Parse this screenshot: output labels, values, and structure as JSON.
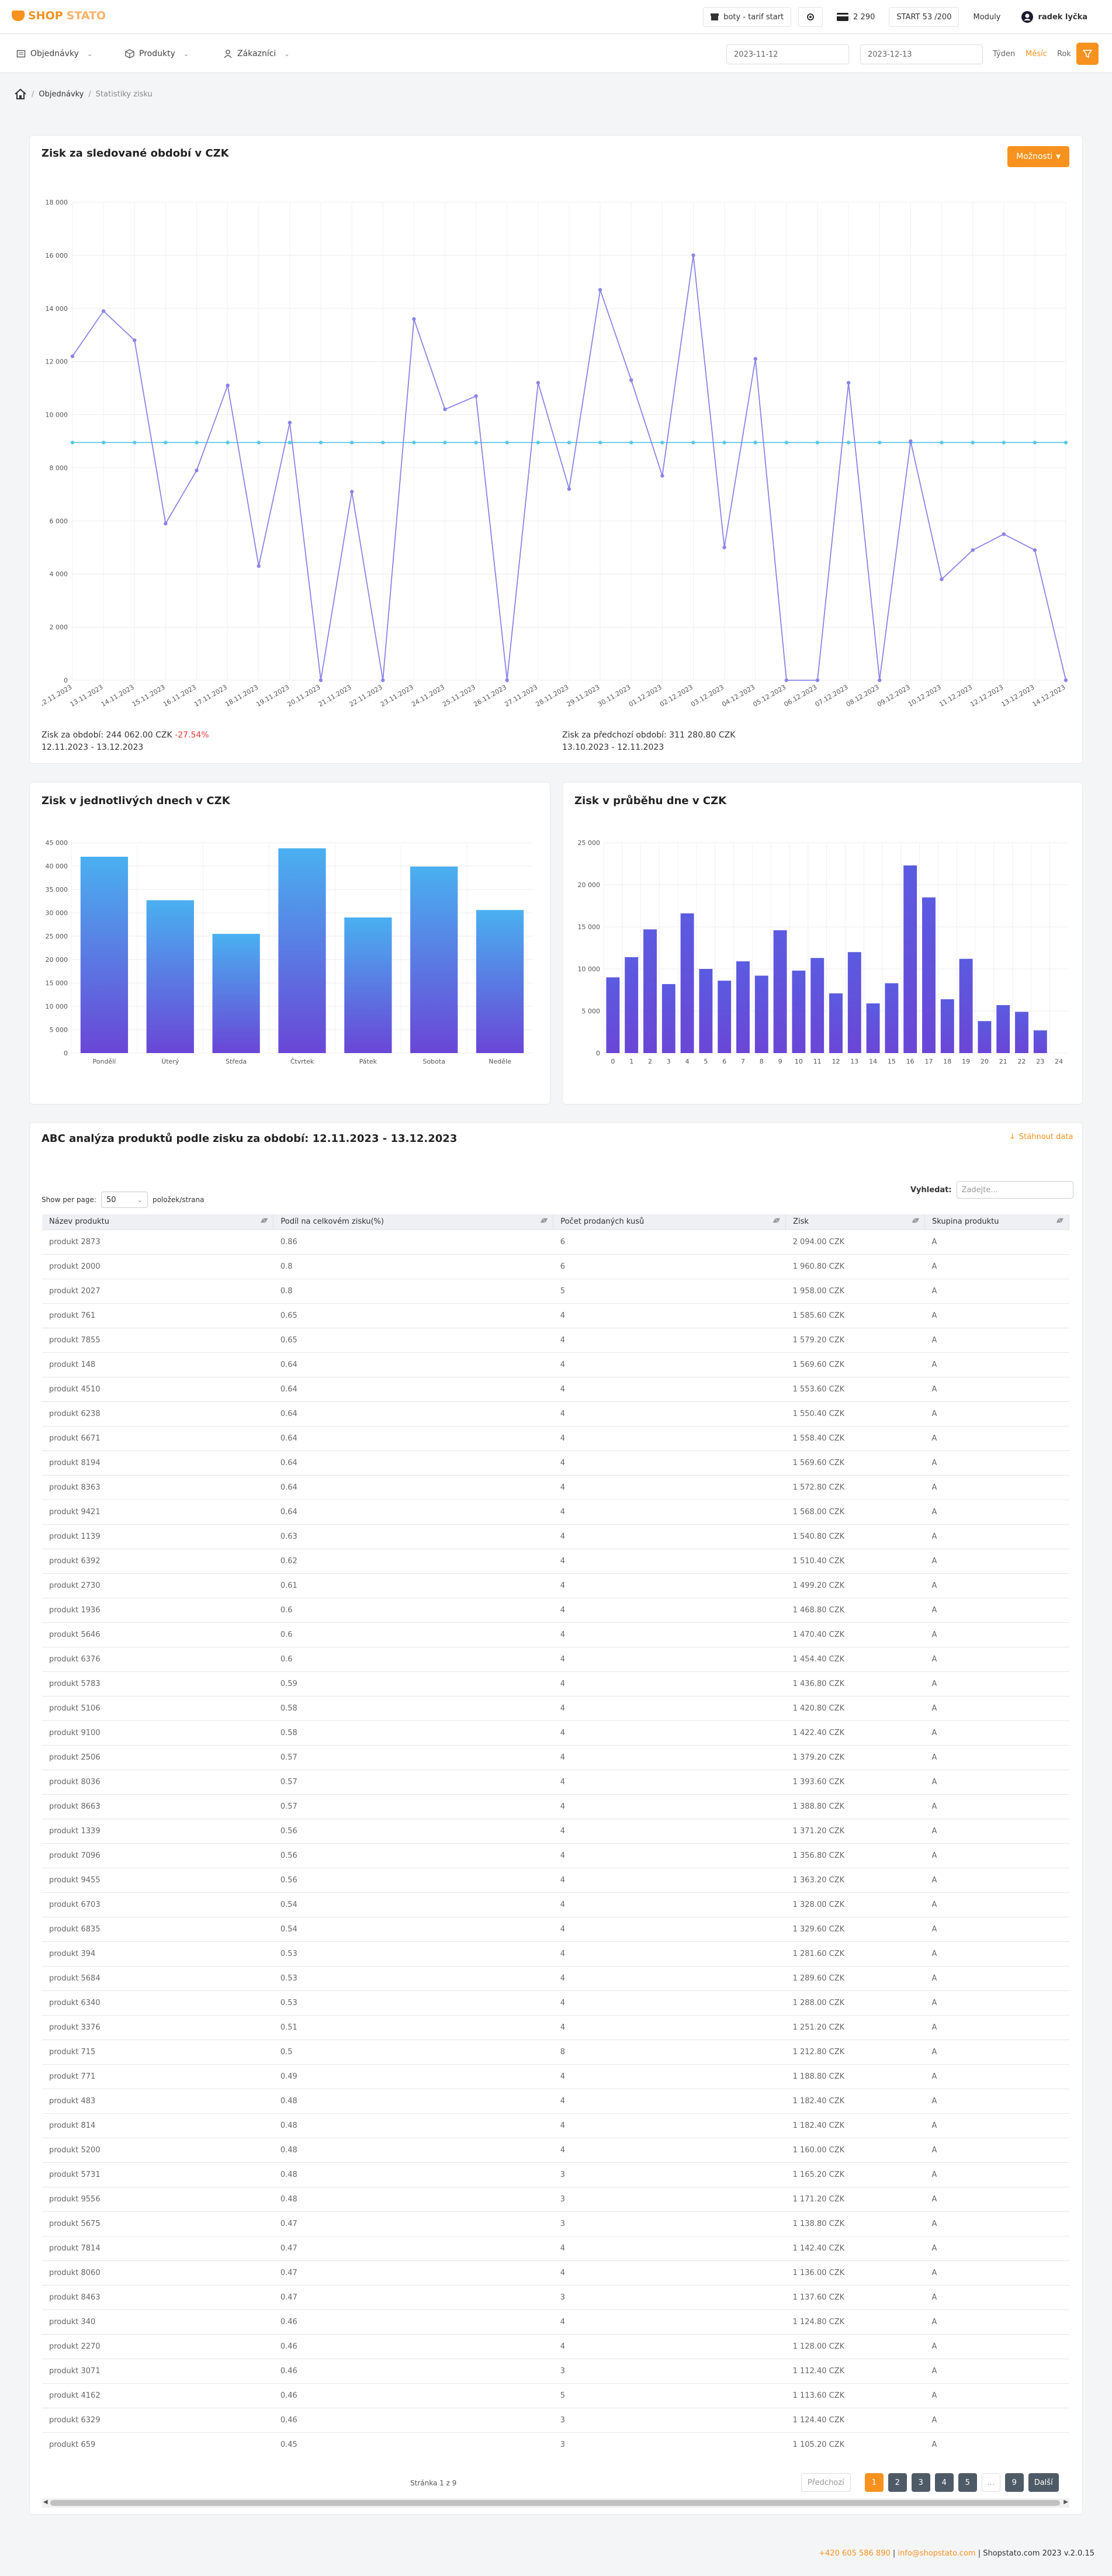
{
  "brand": {
    "name_part1": "SHOP",
    "name_part2": "STATO",
    "accent": "#f7921e"
  },
  "topbar": {
    "plan_label": "boty - tarif start",
    "credits": "2 290",
    "start_label": "START 53 /200",
    "modules_label": "Moduly",
    "user_name": "radek lyčka"
  },
  "nav": {
    "items": [
      {
        "label": "Objednávky",
        "icon": "orders-icon"
      },
      {
        "label": "Produkty",
        "icon": "box-icon"
      },
      {
        "label": "Zákazníci",
        "icon": "user-icon"
      }
    ],
    "date_from": "2023-11-12",
    "date_to": "2023-12-13",
    "periods": [
      "Týden",
      "Měsíc",
      "Rok"
    ],
    "active_period": "Měsíc"
  },
  "breadcrumb": {
    "items": [
      "Objednávky",
      "Statistiky zisku"
    ]
  },
  "profit_card": {
    "title": "Zisk za sledované období v CZK",
    "options_label": "Možnosti",
    "current_period_label": "Zisk za období: 244 062.00 CZK",
    "current_period_change": "-27.54%",
    "current_period_range": "12.11.2023 - 13.12.2023",
    "previous_period_label": "Zisk za předchozí období: 311 280.80 CZK",
    "previous_period_range": "13.10.2023 - 12.11.2023"
  },
  "weekday_card": {
    "title": "Zisk v jednotlivých dnech v CZK"
  },
  "hourly_card": {
    "title": "Zisk v průběhu dne v CZK"
  },
  "abc_card": {
    "title": "ABC analýza produktů podle zisku za období: 12.11.2023 - 13.12.2023",
    "download_label": "Stáhnout data",
    "show_per_page_label": "Show per page:",
    "per_page_value": "50",
    "per_page_suffix": "položek/strana",
    "search_label": "Vyhledat:",
    "search_placeholder": "Zadejte...",
    "columns": [
      "Název produktu",
      "Podíl na celkovém zisku(%)",
      "Počet prodaných kusů",
      "Zisk",
      "Skupina produktu"
    ],
    "rows": [
      [
        "produkt 2873",
        "0.86",
        "6",
        "2 094.00 CZK",
        "A"
      ],
      [
        "produkt 2000",
        "0.8",
        "6",
        "1 960.80 CZK",
        "A"
      ],
      [
        "produkt 2027",
        "0.8",
        "5",
        "1 958.00 CZK",
        "A"
      ],
      [
        "produkt 761",
        "0.65",
        "4",
        "1 585.60 CZK",
        "A"
      ],
      [
        "produkt 7855",
        "0.65",
        "4",
        "1 579.20 CZK",
        "A"
      ],
      [
        "produkt 148",
        "0.64",
        "4",
        "1 569.60 CZK",
        "A"
      ],
      [
        "produkt 4510",
        "0.64",
        "4",
        "1 553.60 CZK",
        "A"
      ],
      [
        "produkt 6238",
        "0.64",
        "4",
        "1 550.40 CZK",
        "A"
      ],
      [
        "produkt 6671",
        "0.64",
        "4",
        "1 558.40 CZK",
        "A"
      ],
      [
        "produkt 8194",
        "0.64",
        "4",
        "1 569.60 CZK",
        "A"
      ],
      [
        "produkt 8363",
        "0.64",
        "4",
        "1 572.80 CZK",
        "A"
      ],
      [
        "produkt 9421",
        "0.64",
        "4",
        "1 568.00 CZK",
        "A"
      ],
      [
        "produkt 1139",
        "0.63",
        "4",
        "1 540.80 CZK",
        "A"
      ],
      [
        "produkt 6392",
        "0.62",
        "4",
        "1 510.40 CZK",
        "A"
      ],
      [
        "produkt 2730",
        "0.61",
        "4",
        "1 499.20 CZK",
        "A"
      ],
      [
        "produkt 1936",
        "0.6",
        "4",
        "1 468.80 CZK",
        "A"
      ],
      [
        "produkt 5646",
        "0.6",
        "4",
        "1 470.40 CZK",
        "A"
      ],
      [
        "produkt 6376",
        "0.6",
        "4",
        "1 454.40 CZK",
        "A"
      ],
      [
        "produkt 5783",
        "0.59",
        "4",
        "1 436.80 CZK",
        "A"
      ],
      [
        "produkt 5106",
        "0.58",
        "4",
        "1 420.80 CZK",
        "A"
      ],
      [
        "produkt 9100",
        "0.58",
        "4",
        "1 422.40 CZK",
        "A"
      ],
      [
        "produkt 2506",
        "0.57",
        "4",
        "1 379.20 CZK",
        "A"
      ],
      [
        "produkt 8036",
        "0.57",
        "4",
        "1 393.60 CZK",
        "A"
      ],
      [
        "produkt 8663",
        "0.57",
        "4",
        "1 388.80 CZK",
        "A"
      ],
      [
        "produkt 1339",
        "0.56",
        "4",
        "1 371.20 CZK",
        "A"
      ],
      [
        "produkt 7096",
        "0.56",
        "4",
        "1 356.80 CZK",
        "A"
      ],
      [
        "produkt 9455",
        "0.56",
        "4",
        "1 363.20 CZK",
        "A"
      ],
      [
        "produkt 6703",
        "0.54",
        "4",
        "1 328.00 CZK",
        "A"
      ],
      [
        "produkt 6835",
        "0.54",
        "4",
        "1 329.60 CZK",
        "A"
      ],
      [
        "produkt 394",
        "0.53",
        "4",
        "1 281.60 CZK",
        "A"
      ],
      [
        "produkt 5684",
        "0.53",
        "4",
        "1 289.60 CZK",
        "A"
      ],
      [
        "produkt 6340",
        "0.53",
        "4",
        "1 288.00 CZK",
        "A"
      ],
      [
        "produkt 3376",
        "0.51",
        "4",
        "1 251.20 CZK",
        "A"
      ],
      [
        "produkt 715",
        "0.5",
        "8",
        "1 212.80 CZK",
        "A"
      ],
      [
        "produkt 771",
        "0.49",
        "4",
        "1 188.80 CZK",
        "A"
      ],
      [
        "produkt 483",
        "0.48",
        "4",
        "1 182.40 CZK",
        "A"
      ],
      [
        "produkt 814",
        "0.48",
        "4",
        "1 182.40 CZK",
        "A"
      ],
      [
        "produkt 5200",
        "0.48",
        "4",
        "1 160.00 CZK",
        "A"
      ],
      [
        "produkt 5731",
        "0.48",
        "3",
        "1 165.20 CZK",
        "A"
      ],
      [
        "produkt 9556",
        "0.48",
        "3",
        "1 171.20 CZK",
        "A"
      ],
      [
        "produkt 5675",
        "0.47",
        "3",
        "1 138.80 CZK",
        "A"
      ],
      [
        "produkt 7814",
        "0.47",
        "4",
        "1 142.40 CZK",
        "A"
      ],
      [
        "produkt 8060",
        "0.47",
        "4",
        "1 136.00 CZK",
        "A"
      ],
      [
        "produkt 8463",
        "0.47",
        "3",
        "1 137.60 CZK",
        "A"
      ],
      [
        "produkt 340",
        "0.46",
        "4",
        "1 124.80 CZK",
        "A"
      ],
      [
        "produkt 2270",
        "0.46",
        "4",
        "1 128.00 CZK",
        "A"
      ],
      [
        "produkt 3071",
        "0.46",
        "3",
        "1 112.40 CZK",
        "A"
      ],
      [
        "produkt 4162",
        "0.46",
        "5",
        "1 113.60 CZK",
        "A"
      ],
      [
        "produkt 6329",
        "0.46",
        "3",
        "1 124.40 CZK",
        "A"
      ],
      [
        "produkt 659",
        "0.45",
        "3",
        "1 105.20 CZK",
        "A"
      ]
    ],
    "pagination": {
      "page_info": "Stránka 1 z 9",
      "prev_label": "Předchozí",
      "next_label": "Další",
      "pages": [
        "1",
        "2",
        "3",
        "4",
        "5",
        "…",
        "9"
      ],
      "current": "1"
    }
  },
  "footer": {
    "phone": "+420 605 586 890",
    "email": "info@shopstato.com",
    "copyright": "Shopstato.com 2023 v.2.0.15"
  },
  "chart_data": [
    {
      "type": "line",
      "x": [
        "12.11.2023",
        "13.11.2023",
        "14.11.2023",
        "15.11.2023",
        "16.11.2023",
        "17.11.2023",
        "18.11.2023",
        "19.11.2023",
        "20.11.2023",
        "21.11.2023",
        "22.11.2023",
        "23.11.2023",
        "24.11.2023",
        "25.11.2023",
        "26.11.2023",
        "27.11.2023",
        "28.11.2023",
        "29.11.2023",
        "30.11.2023",
        "01.12.2023",
        "02.12.2023",
        "03.12.2023",
        "04.12.2023",
        "05.12.2023",
        "06.12.2023",
        "07.12.2023",
        "08.12.2023",
        "09.12.2023",
        "10.12.2023",
        "11.12.2023",
        "12.12.2023",
        "13.12.2023",
        "14.12.2023"
      ],
      "series": [
        {
          "color": "#8b84e8",
          "values": [
            12200,
            13900,
            12800,
            5900,
            7900,
            11100,
            4300,
            9700,
            0,
            7100,
            0,
            13600,
            10200,
            10700,
            0,
            11200,
            7200,
            14700,
            11300,
            7700,
            16000,
            5000,
            12100,
            0,
            0,
            11200,
            0,
            9000,
            3800,
            4900,
            5500,
            4900,
            0
          ]
        },
        {
          "color": "#5bc8e8",
          "values": [
            8950,
            8950,
            8950,
            8950,
            8950,
            8950,
            8950,
            8950,
            8950,
            8950,
            8950,
            8950,
            8950,
            8950,
            8950,
            8950,
            8950,
            8950,
            8950,
            8950,
            8950,
            8950,
            8950,
            8950,
            8950,
            8950,
            8950,
            8950,
            8950,
            8950,
            8950,
            8950,
            8950
          ]
        }
      ],
      "ylim": [
        0,
        18000
      ],
      "yticks": [
        "0",
        "2 000",
        "4 000",
        "6 000",
        "8 000",
        "10 000",
        "12 000",
        "14 000",
        "16 000",
        "18 000"
      ],
      "grid": true
    },
    {
      "type": "bar",
      "categories": [
        "Pondělí",
        "Úterý",
        "Středa",
        "Čtvrtek",
        "Pátek",
        "Sobota",
        "Neděle"
      ],
      "values": [
        42000,
        32700,
        25500,
        43800,
        29000,
        39900,
        30600
      ],
      "ylim": [
        0,
        45000
      ],
      "yticks": [
        "0",
        "5 000",
        "10 000",
        "15 000",
        "20 000",
        "25 000",
        "30 000",
        "35 000",
        "40 000",
        "45 000"
      ],
      "colors": {
        "top": "#4ab0f0",
        "bottom": "#6a46d6"
      },
      "grid": true
    },
    {
      "type": "bar",
      "categories": [
        "0",
        "1",
        "2",
        "3",
        "4",
        "5",
        "6",
        "7",
        "8",
        "9",
        "10",
        "11",
        "12",
        "13",
        "14",
        "15",
        "16",
        "17",
        "18",
        "19",
        "20",
        "21",
        "22",
        "23",
        "24"
      ],
      "values": [
        9000,
        11400,
        14700,
        8200,
        16600,
        10000,
        8600,
        10900,
        9200,
        14600,
        9800,
        11300,
        7100,
        12000,
        5900,
        8300,
        22300,
        18500,
        6400,
        11200,
        3800,
        5700,
        4900,
        2700,
        0
      ],
      "ylim": [
        0,
        25000
      ],
      "yticks": [
        "0",
        "5 000",
        "10 000",
        "15 000",
        "20 000",
        "25 000"
      ],
      "colors": {
        "top": "#5b5be0",
        "bottom": "#6a46d6"
      },
      "grid": true
    }
  ]
}
